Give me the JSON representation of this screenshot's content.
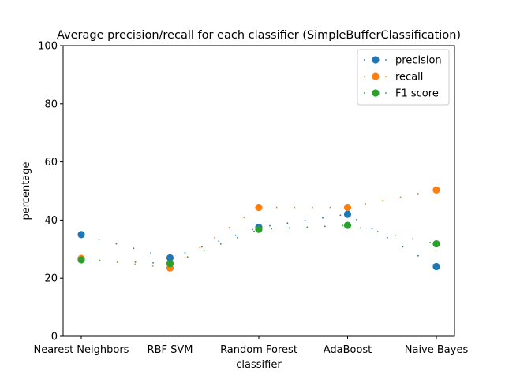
{
  "chart_data": {
    "type": "line",
    "title": "Average precision/recall for each classifier (SimpleBufferClassification)",
    "xlabel": "classifier",
    "ylabel": "percentage",
    "categories": [
      "Nearest Neighbors",
      "RBF SVM",
      "Random Forest",
      "AdaBoost",
      "Naive Bayes"
    ],
    "ylim": [
      0,
      100
    ],
    "yticks": [
      0,
      20,
      40,
      60,
      80,
      100
    ],
    "grid": false,
    "legend_position": "top-right",
    "series": [
      {
        "name": "precision",
        "color": "#1f77b4",
        "values": [
          35.0,
          27.0,
          37.5,
          42.0,
          24.0
        ]
      },
      {
        "name": "recall",
        "color": "#ff7f0e",
        "values": [
          26.8,
          23.5,
          44.3,
          44.3,
          50.3
        ]
      },
      {
        "name": "F1 score",
        "color": "#2ca02c",
        "values": [
          26.3,
          25.0,
          36.8,
          38.2,
          31.8
        ]
      }
    ]
  }
}
